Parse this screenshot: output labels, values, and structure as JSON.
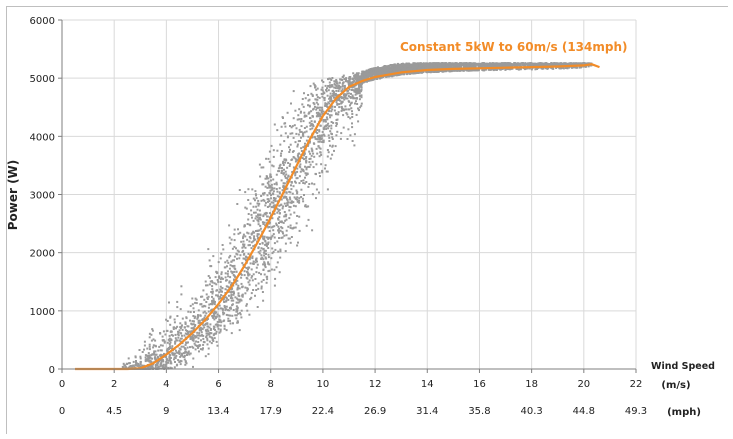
{
  "chart_data": {
    "type": "scatter",
    "title": "",
    "xlabel": "Wind Speed",
    "ylabel": "Power (W)",
    "xlim": [
      0,
      22
    ],
    "ylim": [
      0,
      6000
    ],
    "grid": true,
    "x_ticks": [
      "0",
      "2",
      "4",
      "6",
      "8",
      "10",
      "12",
      "14",
      "16",
      "18",
      "20",
      "22"
    ],
    "x_unit": "(m/s)",
    "x_ticks_secondary": [
      "0",
      "4.5",
      "9",
      "13.4",
      "17.9",
      "22.4",
      "26.9",
      "31.4",
      "35.8",
      "40.3",
      "44.8",
      "49.3"
    ],
    "x_unit_secondary": "(mph)",
    "y_ticks": [
      "0",
      "1000",
      "2000",
      "3000",
      "4000",
      "5000",
      "6000"
    ],
    "annotation": "Constant 5kW to 60m/s (134mph)",
    "colors": {
      "scatter": "#9a9a9a",
      "curve": "#f28c28",
      "grid": "#d9d9d9",
      "axis": "#7f7f7f"
    },
    "series": [
      {
        "kind": "fitted-curve",
        "x": [
          0.5,
          1,
          2,
          2.5,
          3,
          3.5,
          4,
          4.5,
          5,
          5.5,
          6,
          6.5,
          7,
          7.5,
          8,
          8.5,
          9,
          9.5,
          10,
          10.5,
          11,
          11.5,
          12,
          12.5,
          13,
          13.5,
          14,
          15,
          16,
          17,
          18,
          19,
          20,
          20.3,
          20.6
        ],
        "y": [
          0,
          0,
          0,
          0,
          10,
          100,
          250,
          420,
          620,
          850,
          1120,
          1420,
          1780,
          2180,
          2600,
          3050,
          3500,
          3950,
          4350,
          4650,
          4850,
          4950,
          5020,
          5060,
          5100,
          5120,
          5140,
          5160,
          5170,
          5180,
          5190,
          5200,
          5220,
          5240,
          5190
        ]
      },
      {
        "kind": "measured-points",
        "x_range": [
          2.3,
          20.3
        ],
        "y_max": 5260,
        "density": "dense"
      }
    ]
  }
}
